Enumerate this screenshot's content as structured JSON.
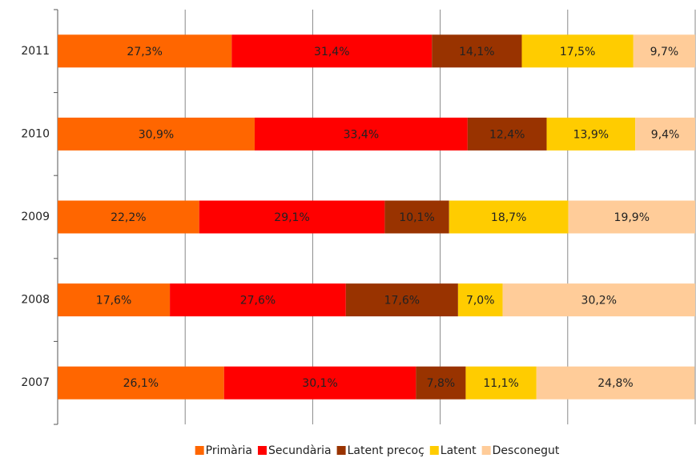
{
  "chart_data": {
    "type": "stacked-bar-horizontal",
    "categories": [
      "2011",
      "2010",
      "2009",
      "2008",
      "2007"
    ],
    "series": [
      {
        "name": "Primària",
        "color": "#ff6600",
        "values": [
          27.3,
          30.9,
          22.2,
          17.6,
          26.1
        ],
        "value_labels": [
          "27,3%",
          "30,9%",
          "22,2%",
          "17,6%",
          "26,1%"
        ]
      },
      {
        "name": "Secundària",
        "color": "#ff0000",
        "values": [
          31.4,
          33.4,
          29.1,
          27.6,
          30.1
        ],
        "value_labels": [
          "31,4%",
          "33,4%",
          "29,1%",
          "27,6%",
          "30,1%"
        ]
      },
      {
        "name": "Latent precoç",
        "color": "#993300",
        "values": [
          14.1,
          12.4,
          10.1,
          17.6,
          7.8
        ],
        "value_labels": [
          "14,1%",
          "12,4%",
          "10,1%",
          "17,6%",
          "7,8%"
        ]
      },
      {
        "name": "Latent",
        "color": "#ffcc00",
        "values": [
          17.5,
          13.9,
          18.7,
          7.0,
          11.1
        ],
        "value_labels": [
          "17,5%",
          "13,9%",
          "18,7%",
          "7,0%",
          "11,1%"
        ]
      },
      {
        "name": "Desconegut",
        "color": "#ffcc99",
        "values": [
          9.7,
          9.4,
          19.9,
          30.2,
          24.8
        ],
        "value_labels": [
          "9,7%",
          "9,4%",
          "19,9%",
          "30,2%",
          "24,8%"
        ]
      }
    ],
    "xlim": [
      0,
      100
    ],
    "xticks": [
      0,
      20,
      40,
      60,
      80,
      100
    ],
    "grid": true,
    "legend": "bottom"
  }
}
